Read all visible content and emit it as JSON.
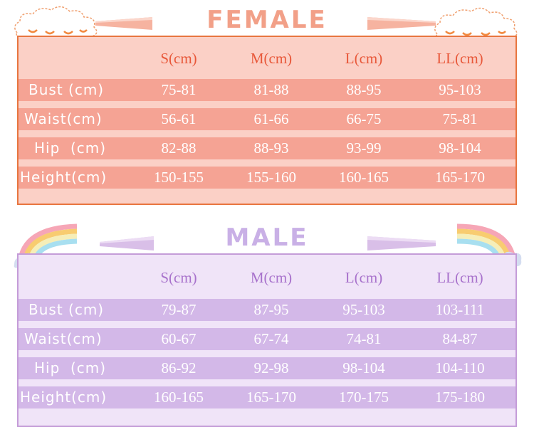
{
  "female": {
    "title": "FEMALE",
    "headers": [
      "S(cm)",
      "M(cm)",
      "L(cm)",
      "LL(cm)"
    ],
    "rows": [
      {
        "label": "Bust (cm)",
        "values": [
          "75-81",
          "81-88",
          "88-95",
          "95-103"
        ]
      },
      {
        "label": "Waist(cm)",
        "values": [
          "56-61",
          "61-66",
          "66-75",
          "75-81"
        ]
      },
      {
        "label": "Hip  (cm)",
        "values": [
          "82-88",
          "88-93",
          "93-99",
          "98-104"
        ]
      },
      {
        "label": "Height(cm)",
        "values": [
          "150-155",
          "155-160",
          "160-165",
          "165-170"
        ]
      }
    ]
  },
  "male": {
    "title": "MALE",
    "headers": [
      "S(cm)",
      "M(cm)",
      "L(cm)",
      "LL(cm)"
    ],
    "rows": [
      {
        "label": "Bust (cm)",
        "values": [
          "79-87",
          "87-95",
          "95-103",
          "103-111"
        ]
      },
      {
        "label": "Waist(cm)",
        "values": [
          "60-67",
          "67-74",
          "74-81",
          "84-87"
        ]
      },
      {
        "label": "Hip  (cm)",
        "values": [
          "86-92",
          "92-98",
          "98-104",
          "104-110"
        ]
      },
      {
        "label": "Height(cm)",
        "values": [
          "160-165",
          "165-170",
          "170-175",
          "175-180"
        ]
      }
    ]
  },
  "colors": {
    "female_accent": "#e8753f",
    "female_row": "#f5a394",
    "male_accent": "#c49cd8",
    "male_row": "#d3b8e8"
  },
  "icons": [
    "cloud-icon",
    "rainbow-icon",
    "ribbon-icon"
  ]
}
